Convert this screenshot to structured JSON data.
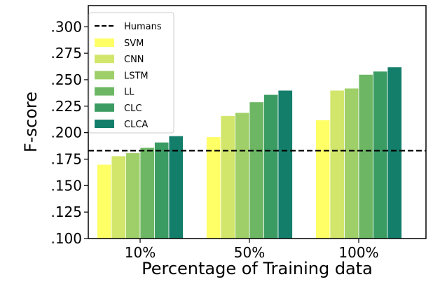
{
  "chart_data": {
    "type": "bar",
    "title": "",
    "xlabel": "Percentage of Training data",
    "ylabel": "F-score",
    "categories": [
      "10%",
      "50%",
      "100%"
    ],
    "ylim": [
      0.1,
      0.32
    ],
    "yticks": [
      0.1,
      0.125,
      0.15,
      0.175,
      0.2,
      0.225,
      0.25,
      0.275,
      0.3
    ],
    "ytick_labels": [
      ".100",
      ".125",
      ".150",
      ".175",
      ".200",
      ".225",
      ".250",
      ".275",
      ".300"
    ],
    "grid": false,
    "legend_position": "top-left",
    "reference_line": {
      "name": "Humans",
      "value": 0.183,
      "style": "dashed",
      "color": "#000000"
    },
    "series": [
      {
        "name": "SVM",
        "color": "#ffff66",
        "values": [
          0.17,
          0.196,
          0.212
        ]
      },
      {
        "name": "CNN",
        "color": "#d2e66b",
        "values": [
          0.178,
          0.216,
          0.24
        ]
      },
      {
        "name": "LSTM",
        "color": "#9fcf69",
        "values": [
          0.181,
          0.219,
          0.242
        ]
      },
      {
        "name": "LL",
        "color": "#6db764",
        "values": [
          0.186,
          0.229,
          0.255
        ]
      },
      {
        "name": "CLC",
        "color": "#3b9c63",
        "values": [
          0.191,
          0.236,
          0.258
        ]
      },
      {
        "name": "CLCA",
        "color": "#137f6b",
        "values": [
          0.197,
          0.24,
          0.262
        ]
      }
    ]
  }
}
